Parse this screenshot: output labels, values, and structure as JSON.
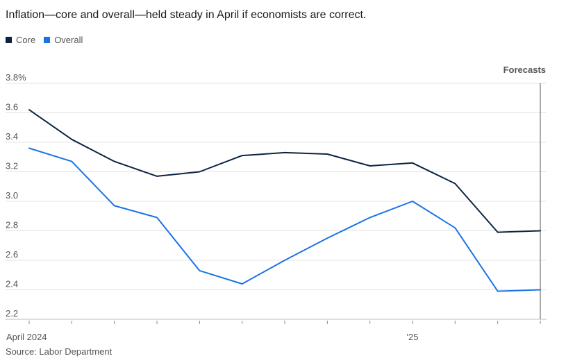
{
  "chart_data": {
    "type": "line",
    "title": "Inflation—core and overall—held steady in April if economists are correct.",
    "source": "Source: Labor Department",
    "annotation": "Forecasts",
    "ylim": [
      2.2,
      3.8
    ],
    "y_ticks": [
      "3.8%",
      "3.6",
      "3.4",
      "3.2",
      "3.0",
      "2.8",
      "2.6",
      "2.4",
      "2.2"
    ],
    "x_tick_labels": [
      "April 2024",
      "'25"
    ],
    "x": [
      "2024-04",
      "2024-05",
      "2024-06",
      "2024-07",
      "2024-08",
      "2024-09",
      "2024-10",
      "2024-11",
      "2024-12",
      "2025-01",
      "2025-02",
      "2025-03",
      "2025-04"
    ],
    "legend_position": "top-left",
    "grid": true,
    "series": [
      {
        "name": "Core",
        "color": "#0b2341",
        "values": [
          3.62,
          3.42,
          3.27,
          3.17,
          3.2,
          3.31,
          3.33,
          3.32,
          3.24,
          3.26,
          3.12,
          2.79,
          2.8
        ]
      },
      {
        "name": "Overall",
        "color": "#1a73e8",
        "values": [
          3.36,
          3.27,
          2.97,
          2.89,
          2.53,
          2.44,
          2.6,
          2.75,
          2.89,
          3.0,
          2.82,
          2.39,
          2.4
        ]
      }
    ]
  }
}
